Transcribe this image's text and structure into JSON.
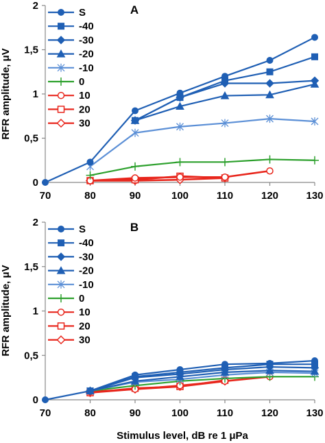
{
  "chart_data": [
    {
      "type": "line",
      "panel_label": "A",
      "ylabel": "RFR amplitude, μV",
      "xlabel": "",
      "xlim": [
        70,
        130
      ],
      "ylim": [
        0,
        2
      ],
      "x_ticks": [
        "70",
        "80",
        "90",
        "100",
        "110",
        "120",
        "130"
      ],
      "y_ticks": [
        "0",
        "0,5",
        "1",
        "1,5",
        "2"
      ],
      "grid": false,
      "legend_position": "top-left",
      "series": [
        {
          "name": "S",
          "color": "#1f5fb4",
          "marker": "circle-filled",
          "x": [
            70,
            80,
            90,
            100,
            110,
            120,
            130
          ],
          "y": [
            0,
            0.23,
            0.81,
            1.01,
            1.2,
            1.38,
            1.64
          ]
        },
        {
          "name": "-40",
          "color": "#1f5fb4",
          "marker": "square-filled",
          "x": [
            90,
            100,
            110,
            120,
            130
          ],
          "y": [
            0.7,
            0.96,
            1.15,
            1.25,
            1.42
          ]
        },
        {
          "name": "-30",
          "color": "#1f5fb4",
          "marker": "diamond-filled",
          "x": [
            90,
            100,
            110,
            120,
            130
          ],
          "y": [
            0.7,
            0.96,
            1.12,
            1.12,
            1.15
          ]
        },
        {
          "name": "-20",
          "color": "#1f5fb4",
          "marker": "triangle-filled",
          "x": [
            90,
            100,
            110,
            120,
            130
          ],
          "y": [
            0.7,
            0.86,
            0.98,
            0.99,
            1.11
          ]
        },
        {
          "name": "-10",
          "color": "#5b8fd6",
          "marker": "asterisk",
          "x": [
            80,
            90,
            100,
            110,
            120,
            130
          ],
          "y": [
            0.18,
            0.56,
            0.63,
            0.67,
            0.72,
            0.69
          ]
        },
        {
          "name": "0",
          "color": "#2ca02c",
          "marker": "plus",
          "x": [
            80,
            90,
            100,
            110,
            120,
            130
          ],
          "y": [
            0.08,
            0.18,
            0.23,
            0.23,
            0.26,
            0.25
          ]
        },
        {
          "name": "10",
          "color": "#e8261c",
          "marker": "circle-open",
          "x": [
            80,
            90,
            100,
            110,
            120
          ],
          "y": [
            0.02,
            0.05,
            0.06,
            0.06,
            0.13
          ]
        },
        {
          "name": "20",
          "color": "#e8261c",
          "marker": "square-open",
          "x": [
            80,
            90,
            100,
            110
          ],
          "y": [
            0.02,
            0.03,
            0.07,
            0.05
          ]
        },
        {
          "name": "30",
          "color": "#e8261c",
          "marker": "diamond-open",
          "x": [
            80,
            90,
            100,
            110
          ],
          "y": [
            0.02,
            0.02,
            0.03,
            0.05
          ]
        }
      ]
    },
    {
      "type": "line",
      "panel_label": "B",
      "ylabel": "RFR amplitude, μV",
      "xlabel": "Stimulus level, dB re 1 μPa",
      "xlim": [
        70,
        130
      ],
      "ylim": [
        0,
        2
      ],
      "x_ticks": [
        "70",
        "80",
        "90",
        "100",
        "110",
        "120",
        "130"
      ],
      "y_ticks": [
        "0",
        "0,5",
        "1",
        "1,5",
        "2"
      ],
      "grid": false,
      "legend_position": "top-left",
      "series": [
        {
          "name": "S",
          "color": "#1f5fb4",
          "marker": "circle-filled",
          "x": [
            70,
            80,
            90,
            100,
            110,
            120,
            130
          ],
          "y": [
            0,
            0.1,
            0.28,
            0.34,
            0.4,
            0.41,
            0.44
          ]
        },
        {
          "name": "-40",
          "color": "#1f5fb4",
          "marker": "square-filled",
          "x": [
            80,
            90,
            100,
            110,
            120,
            130
          ],
          "y": [
            0.1,
            0.26,
            0.31,
            0.36,
            0.4,
            0.4
          ]
        },
        {
          "name": "-30",
          "color": "#1f5fb4",
          "marker": "diamond-filled",
          "x": [
            80,
            90,
            100,
            110,
            120,
            130
          ],
          "y": [
            0.1,
            0.25,
            0.29,
            0.34,
            0.37,
            0.36
          ]
        },
        {
          "name": "-20",
          "color": "#1f5fb4",
          "marker": "triangle-filled",
          "x": [
            80,
            90,
            100,
            110,
            120,
            130
          ],
          "y": [
            0.1,
            0.21,
            0.26,
            0.31,
            0.33,
            0.32
          ]
        },
        {
          "name": "-10",
          "color": "#5b8fd6",
          "marker": "asterisk",
          "x": [
            80,
            90,
            100,
            110,
            120,
            130
          ],
          "y": [
            0.1,
            0.2,
            0.23,
            0.28,
            0.31,
            0.3
          ]
        },
        {
          "name": "0",
          "color": "#2ca02c",
          "marker": "plus",
          "x": [
            80,
            90,
            100,
            110,
            120,
            130
          ],
          "y": [
            0.1,
            0.16,
            0.21,
            0.24,
            0.26,
            0.26
          ]
        },
        {
          "name": "10",
          "color": "#e8261c",
          "marker": "circle-open",
          "x": [
            80,
            90,
            100,
            110,
            120
          ],
          "y": [
            0.09,
            0.12,
            0.16,
            0.21,
            0.26
          ]
        },
        {
          "name": "20",
          "color": "#e8261c",
          "marker": "square-open",
          "x": [
            80,
            90,
            100,
            110
          ],
          "y": [
            0.08,
            0.13,
            0.15,
            0.22
          ]
        },
        {
          "name": "30",
          "color": "#e8261c",
          "marker": "diamond-open",
          "x": [
            80,
            90,
            100,
            110
          ],
          "y": [
            0.08,
            0.12,
            0.15,
            0.21
          ]
        }
      ]
    }
  ]
}
